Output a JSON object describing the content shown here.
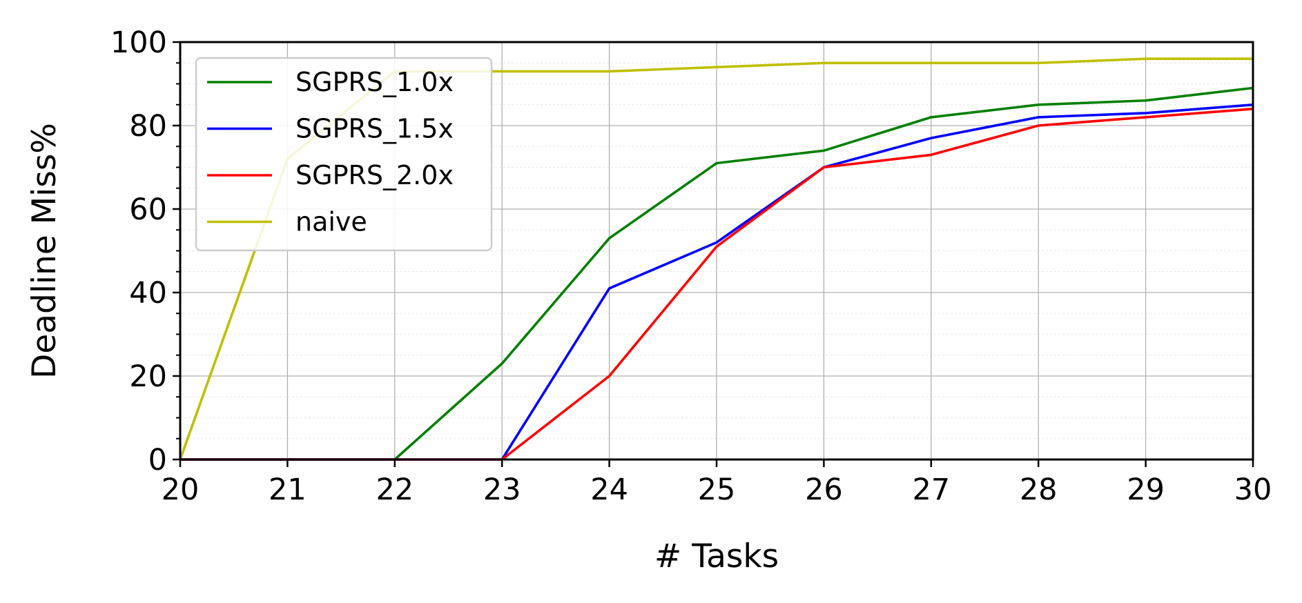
{
  "chart_data": {
    "type": "line",
    "title": "",
    "xlabel": "# Tasks",
    "ylabel": "Deadline Miss%",
    "x": [
      20,
      21,
      22,
      23,
      24,
      25,
      26,
      27,
      28,
      29,
      30
    ],
    "xlim": [
      20,
      30
    ],
    "ylim": [
      0,
      100
    ],
    "xticks": [
      20,
      21,
      22,
      23,
      24,
      25,
      26,
      27,
      28,
      29,
      30
    ],
    "yticks": [
      0,
      20,
      40,
      60,
      80,
      100
    ],
    "grid": true,
    "legend_position": "top-left",
    "series": [
      {
        "name": "SGPRS_1.0x",
        "color": "#008000",
        "values": [
          0,
          0,
          0,
          23,
          53,
          71,
          74,
          82,
          85,
          86,
          89
        ]
      },
      {
        "name": "SGPRS_1.5x",
        "color": "#0000ff",
        "values": [
          0,
          0,
          0,
          0,
          41,
          52,
          70,
          77,
          82,
          83,
          85
        ]
      },
      {
        "name": "SGPRS_2.0x",
        "color": "#ff0000",
        "values": [
          0,
          0,
          0,
          0,
          20,
          51,
          70,
          73,
          80,
          82,
          84
        ]
      },
      {
        "name": "naive",
        "color": "#bfbf00",
        "values": [
          0,
          72,
          93,
          93,
          93,
          94,
          95,
          95,
          95,
          96,
          96
        ]
      }
    ]
  }
}
